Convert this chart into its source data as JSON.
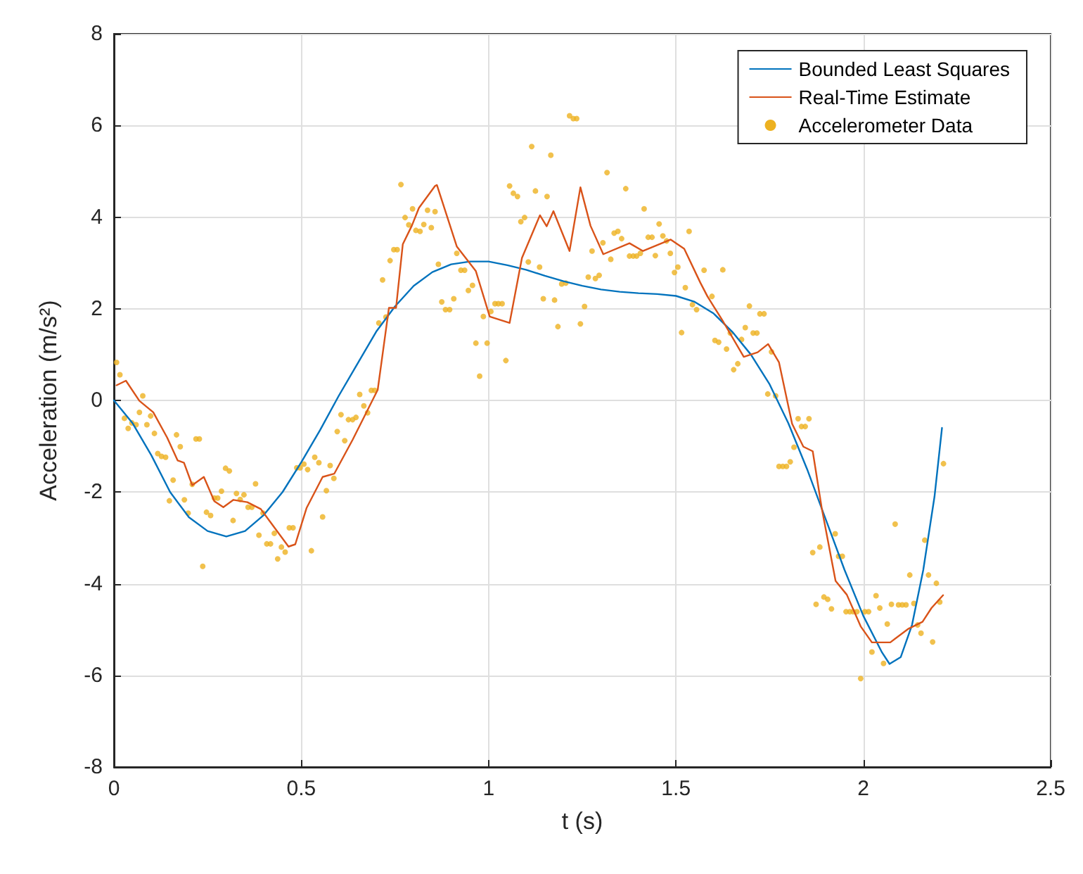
{
  "chart_data": {
    "type": "line",
    "xlabel": "t (s)",
    "ylabel": "Acceleration (m/s²)",
    "xlim": [
      0,
      2.5
    ],
    "xticks": [
      0,
      0.5,
      1,
      1.5,
      2,
      2.5
    ],
    "ylim": [
      -8,
      8
    ],
    "yticks": [
      -8,
      -6,
      -4,
      -2,
      0,
      2,
      4,
      6,
      8
    ],
    "grid": true,
    "legend": "top right",
    "series": [
      {
        "name": "Bounded Least Squares",
        "color": "#0072bd",
        "marker": "none",
        "line_style": "solid",
        "x": [
          0,
          0.05,
          0.1,
          0.15,
          0.2,
          0.25,
          0.3,
          0.35,
          0.4,
          0.45,
          0.5,
          0.55,
          0.6,
          0.65,
          0.7,
          0.75,
          0.8,
          0.85,
          0.9,
          0.95,
          1.0,
          1.05,
          1.1,
          1.15,
          1.2,
          1.25,
          1.3,
          1.35,
          1.4,
          1.45,
          1.5,
          1.55,
          1.6,
          1.65,
          1.7,
          1.75,
          1.8,
          1.85,
          1.9,
          1.95,
          2.0,
          2.05,
          2.07,
          2.1,
          2.13,
          2.16,
          2.19,
          2.21
        ],
        "values": [
          0,
          -0.5,
          -1.2,
          -2,
          -2.55,
          -2.85,
          -2.97,
          -2.85,
          -2.5,
          -2.0,
          -1.35,
          -0.65,
          0.1,
          0.8,
          1.5,
          2.05,
          2.5,
          2.8,
          2.97,
          3.03,
          3.03,
          2.95,
          2.85,
          2.72,
          2.6,
          2.5,
          2.42,
          2.37,
          2.34,
          2.32,
          2.28,
          2.15,
          1.9,
          1.5,
          1.0,
          0.35,
          -0.5,
          -1.5,
          -2.6,
          -3.7,
          -4.7,
          -5.5,
          -5.75,
          -5.6,
          -4.9,
          -3.7,
          -2.1,
          -0.6
        ]
      },
      {
        "name": "Real-Time Estimate",
        "color": "#d95319",
        "marker": "none",
        "line_style": "solid",
        "x": [
          0.007,
          0.032,
          0.068,
          0.105,
          0.142,
          0.17,
          0.187,
          0.209,
          0.24,
          0.268,
          0.292,
          0.319,
          0.356,
          0.392,
          0.417,
          0.466,
          0.484,
          0.514,
          0.557,
          0.588,
          0.637,
          0.704,
          0.734,
          0.753,
          0.771,
          0.795,
          0.814,
          0.857,
          0.862,
          0.915,
          0.966,
          1.003,
          1.056,
          1.089,
          1.137,
          1.155,
          1.173,
          1.216,
          1.245,
          1.272,
          1.306,
          1.376,
          1.412,
          1.486,
          1.522,
          1.565,
          1.584,
          1.626,
          1.681,
          1.718,
          1.746,
          1.775,
          1.81,
          1.84,
          1.865,
          1.889,
          1.926,
          1.956,
          1.993,
          2.023,
          2.072,
          2.121,
          2.158,
          2.182,
          2.213
        ],
        "values": [
          0.33,
          0.43,
          -0.01,
          -0.26,
          -0.81,
          -1.31,
          -1.36,
          -1.85,
          -1.67,
          -2.2,
          -2.33,
          -2.17,
          -2.22,
          -2.37,
          -2.65,
          -3.19,
          -3.14,
          -2.35,
          -1.67,
          -1.6,
          -0.86,
          0.23,
          2.02,
          2.02,
          3.41,
          3.81,
          4.2,
          4.68,
          4.7,
          3.36,
          2.82,
          1.83,
          1.69,
          3.11,
          4.04,
          3.8,
          4.13,
          3.26,
          4.65,
          3.81,
          3.19,
          3.43,
          3.26,
          3.51,
          3.31,
          2.57,
          2.27,
          1.72,
          0.95,
          1.05,
          1.23,
          0.83,
          -0.51,
          -1.01,
          -1.11,
          -2.35,
          -3.94,
          -4.24,
          -4.93,
          -5.28,
          -5.28,
          -4.98,
          -4.83,
          -4.53,
          -4.25
        ]
      },
      {
        "name": "Accelerometer Data",
        "type": "scatter",
        "color": "#edb120",
        "marker": "circle",
        "x": [
          0.007,
          0.016,
          0.028,
          0.038,
          0.048,
          0.059,
          0.068,
          0.077,
          0.088,
          0.098,
          0.108,
          0.117,
          0.127,
          0.138,
          0.148,
          0.158,
          0.167,
          0.177,
          0.188,
          0.198,
          0.209,
          0.219,
          0.228,
          0.237,
          0.247,
          0.258,
          0.268,
          0.277,
          0.287,
          0.298,
          0.308,
          0.318,
          0.327,
          0.337,
          0.347,
          0.358,
          0.368,
          0.378,
          0.387,
          0.398,
          0.408,
          0.418,
          0.428,
          0.437,
          0.447,
          0.457,
          0.468,
          0.478,
          0.488,
          0.497,
          0.507,
          0.517,
          0.527,
          0.536,
          0.547,
          0.557,
          0.567,
          0.577,
          0.587,
          0.596,
          0.606,
          0.616,
          0.626,
          0.637,
          0.646,
          0.656,
          0.667,
          0.677,
          0.687,
          0.696,
          0.707,
          0.717,
          0.726,
          0.737,
          0.747,
          0.756,
          0.766,
          0.777,
          0.787,
          0.797,
          0.806,
          0.817,
          0.827,
          0.837,
          0.847,
          0.857,
          0.866,
          0.875,
          0.885,
          0.896,
          0.907,
          0.915,
          0.926,
          0.936,
          0.946,
          0.957,
          0.966,
          0.976,
          0.986,
          0.996,
          1.006,
          1.017,
          1.026,
          1.036,
          1.046,
          1.056,
          1.066,
          1.077,
          1.086,
          1.096,
          1.106,
          1.115,
          1.125,
          1.136,
          1.146,
          1.156,
          1.166,
          1.176,
          1.185,
          1.195,
          1.206,
          1.216,
          1.226,
          1.235,
          1.245,
          1.256,
          1.266,
          1.276,
          1.285,
          1.295,
          1.305,
          1.316,
          1.326,
          1.335,
          1.345,
          1.355,
          1.366,
          1.376,
          1.386,
          1.395,
          1.405,
          1.415,
          1.426,
          1.436,
          1.445,
          1.455,
          1.465,
          1.475,
          1.485,
          1.496,
          1.505,
          1.515,
          1.525,
          1.535,
          1.544,
          1.555,
          1.575,
          1.596,
          1.604,
          1.614,
          1.625,
          1.635,
          1.645,
          1.654,
          1.665,
          1.675,
          1.685,
          1.696,
          1.706,
          1.716,
          1.724,
          1.735,
          1.745,
          1.755,
          1.766,
          1.775,
          1.785,
          1.795,
          1.805,
          1.815,
          1.826,
          1.835,
          1.845,
          1.855,
          1.865,
          1.874,
          1.884,
          1.895,
          1.905,
          1.915,
          1.925,
          1.934,
          1.944,
          1.954,
          1.964,
          1.973,
          1.983,
          1.993,
          2.004,
          2.014,
          2.023,
          2.034,
          2.044,
          2.054,
          2.064,
          2.075,
          2.085,
          2.094,
          2.104,
          2.114,
          2.124,
          2.135,
          2.145,
          2.154,
          2.164,
          2.174,
          2.185,
          2.195,
          2.204,
          2.214
        ],
        "values": [
          0.83,
          0.56,
          -0.39,
          -0.61,
          -0.49,
          -0.53,
          -0.26,
          0.1,
          -0.53,
          -0.34,
          -0.72,
          -1.16,
          -1.22,
          -1.24,
          -2.19,
          -1.74,
          -0.75,
          -1.01,
          -2.17,
          -2.46,
          -1.83,
          -0.84,
          -0.84,
          -3.62,
          -2.44,
          -2.51,
          -2.13,
          -2.13,
          -1.98,
          -1.48,
          -1.54,
          -2.62,
          -2.03,
          -2.16,
          -2.06,
          -2.33,
          -2.33,
          -1.82,
          -2.94,
          -2.46,
          -3.13,
          -3.13,
          -2.9,
          -3.46,
          -3.2,
          -3.31,
          -2.78,
          -2.78,
          -1.47,
          -1.47,
          -1.39,
          -1.51,
          -3.28,
          -1.24,
          -1.36,
          -2.54,
          -1.97,
          -1.42,
          -1.7,
          -0.68,
          -0.31,
          -0.88,
          -0.42,
          -0.42,
          -0.37,
          0.13,
          -0.12,
          -0.27,
          0.22,
          0.22,
          1.69,
          2.63,
          1.82,
          3.05,
          3.29,
          3.29,
          4.71,
          3.99,
          3.83,
          4.18,
          3.71,
          3.69,
          3.84,
          4.15,
          3.77,
          4.12,
          2.97,
          2.15,
          1.98,
          1.98,
          2.22,
          3.21,
          2.84,
          2.84,
          2.4,
          2.51,
          1.25,
          0.53,
          1.83,
          1.25,
          1.94,
          2.11,
          2.11,
          2.11,
          0.87,
          4.68,
          4.52,
          4.45,
          3.9,
          3.99,
          3.02,
          5.54,
          4.57,
          2.91,
          2.22,
          4.45,
          5.35,
          2.19,
          1.61,
          2.54,
          2.56,
          6.21,
          6.15,
          6.15,
          1.67,
          2.05,
          2.69,
          3.26,
          2.66,
          2.73,
          3.44,
          4.97,
          3.08,
          3.65,
          3.69,
          3.53,
          4.62,
          3.15,
          3.15,
          3.15,
          3.21,
          4.18,
          3.56,
          3.56,
          3.16,
          3.85,
          3.59,
          3.48,
          3.21,
          2.79,
          2.91,
          1.48,
          2.46,
          3.69,
          2.09,
          1.98,
          2.84,
          2.27,
          1.31,
          1.27,
          2.85,
          1.12,
          1.47,
          0.67,
          0.8,
          1.33,
          1.59,
          2.06,
          1.47,
          1.47,
          1.89,
          1.89,
          0.14,
          1.06,
          0.1,
          -1.44,
          -1.44,
          -1.44,
          -1.34,
          -1.02,
          -0.4,
          -0.57,
          -0.57,
          -0.4,
          -3.32,
          -4.45,
          -3.2,
          -4.29,
          -4.34,
          -4.55,
          -2.91,
          -3.4,
          -3.4,
          -4.61,
          -4.61,
          -4.61,
          -4.61,
          -6.07,
          -4.61,
          -4.61,
          -5.49,
          -4.26,
          -4.53,
          -5.74,
          -4.88,
          -4.45,
          -2.7,
          -4.46,
          -4.46,
          -4.46,
          -3.81,
          -4.43,
          -4.9,
          -5.08,
          -3.05,
          -3.81,
          -5.27,
          -3.99,
          -4.4,
          -1.38
        ]
      }
    ]
  }
}
